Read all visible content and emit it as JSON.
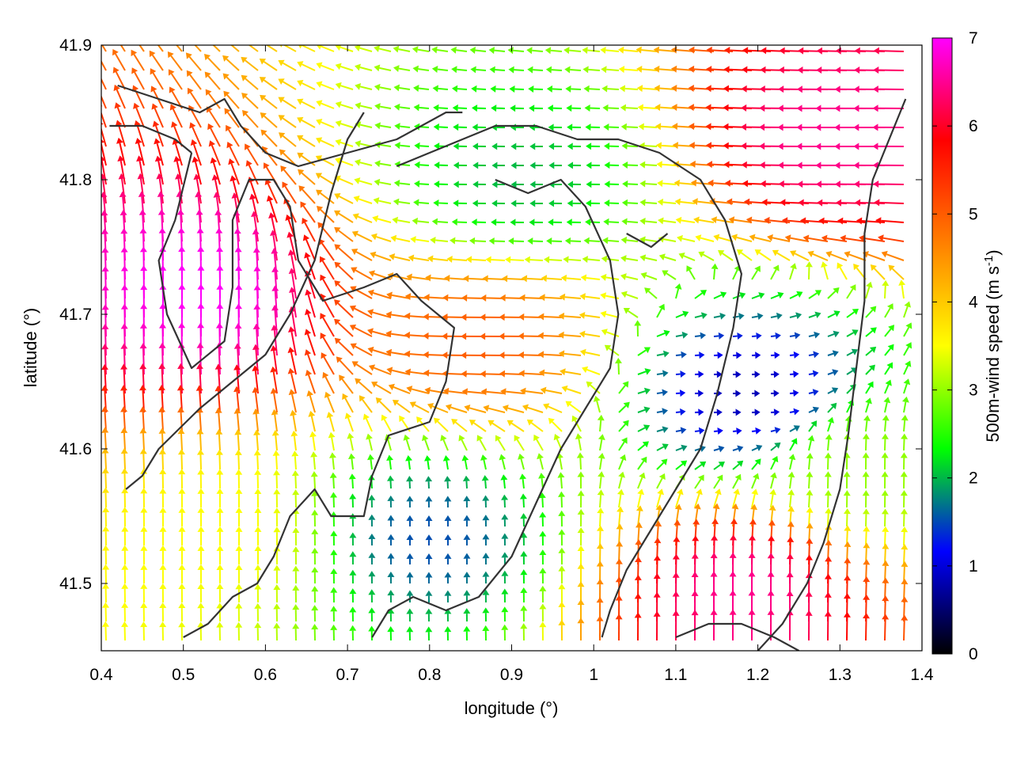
{
  "chart_data": {
    "type": "vector-field",
    "xlabel": "longitude (°)",
    "ylabel": "latitude (°)",
    "xlim": [
      0.4,
      1.4
    ],
    "ylim": [
      41.45,
      41.9
    ],
    "xticks": [
      "0.4",
      "0.5",
      "0.6",
      "0.7",
      "0.8",
      "0.9",
      "1",
      "1.1",
      "1.2",
      "1.3",
      "1.4"
    ],
    "yticks": [
      "41.5",
      "41.6",
      "41.7",
      "41.8",
      "41.9"
    ],
    "colorbar": {
      "label": "500m-wind speed (m s-1)",
      "label_main": "500m-wind speed (m s",
      "label_sup": "-1",
      "label_end": ")",
      "range": [
        0,
        7
      ],
      "ticks": [
        "0",
        "1",
        "2",
        "3",
        "4",
        "5",
        "6",
        "7"
      ],
      "palette": [
        "#000000",
        "#0000ff",
        "#00ff00",
        "#ffff00",
        "#ff8000",
        "#ff0000",
        "#ff00ff"
      ]
    },
    "grid": false,
    "wind_regions": [
      {
        "center": [
          0.52,
          41.7
        ],
        "speed": 7,
        "direction": "north"
      },
      {
        "center": [
          0.88,
          41.68
        ],
        "speed": 5,
        "direction": "west"
      },
      {
        "center": [
          0.92,
          41.8
        ],
        "speed": 2,
        "direction": "west"
      },
      {
        "center": [
          1.18,
          41.64
        ],
        "speed": 0.8,
        "direction": "east"
      },
      {
        "center": [
          1.32,
          41.83
        ],
        "speed": 6.5,
        "direction": "west"
      },
      {
        "center": [
          0.55,
          41.53
        ],
        "speed": 3.5,
        "direction": "north"
      },
      {
        "center": [
          1.18,
          41.48
        ],
        "speed": 6.5,
        "direction": "north"
      },
      {
        "center": [
          0.8,
          41.53
        ],
        "speed": 1.5,
        "direction": "north"
      },
      {
        "center": [
          1.32,
          41.58
        ],
        "speed": 3,
        "direction": "north"
      }
    ],
    "contours": [
      [
        [
          0.42,
          41.87
        ],
        [
          0.47,
          41.86
        ],
        [
          0.52,
          41.85
        ],
        [
          0.55,
          41.86
        ],
        [
          0.57,
          41.84
        ],
        [
          0.6,
          41.82
        ],
        [
          0.64,
          41.81
        ],
        [
          0.7,
          41.82
        ],
        [
          0.76,
          41.83
        ],
        [
          0.82,
          41.85
        ],
        [
          0.84,
          41.85
        ]
      ],
      [
        [
          0.41,
          41.84
        ],
        [
          0.45,
          41.84
        ],
        [
          0.49,
          41.83
        ],
        [
          0.51,
          41.82
        ]
      ],
      [
        [
          0.51,
          41.82
        ],
        [
          0.49,
          41.77
        ],
        [
          0.47,
          41.74
        ],
        [
          0.48,
          41.7
        ],
        [
          0.51,
          41.66
        ],
        [
          0.55,
          41.68
        ],
        [
          0.56,
          41.72
        ],
        [
          0.56,
          41.77
        ],
        [
          0.58,
          41.8
        ],
        [
          0.61,
          41.8
        ],
        [
          0.63,
          41.78
        ],
        [
          0.64,
          41.74
        ],
        [
          0.67,
          41.71
        ],
        [
          0.72,
          41.72
        ],
        [
          0.76,
          41.73
        ],
        [
          0.79,
          41.71
        ],
        [
          0.83,
          41.69
        ],
        [
          0.82,
          41.65
        ],
        [
          0.8,
          41.62
        ],
        [
          0.75,
          41.61
        ],
        [
          0.73,
          41.58
        ],
        [
          0.72,
          41.55
        ],
        [
          0.68,
          41.55
        ],
        [
          0.66,
          41.57
        ],
        [
          0.63,
          41.55
        ],
        [
          0.61,
          41.52
        ],
        [
          0.59,
          41.5
        ],
        [
          0.56,
          41.49
        ],
        [
          0.53,
          41.47
        ],
        [
          0.5,
          41.46
        ]
      ],
      [
        [
          0.43,
          41.57
        ],
        [
          0.45,
          41.58
        ],
        [
          0.47,
          41.6
        ],
        [
          0.52,
          41.63
        ],
        [
          0.56,
          41.65
        ],
        [
          0.6,
          41.67
        ],
        [
          0.63,
          41.7
        ],
        [
          0.66,
          41.74
        ],
        [
          0.68,
          41.79
        ],
        [
          0.7,
          41.83
        ],
        [
          0.72,
          41.85
        ]
      ],
      [
        [
          0.76,
          41.81
        ],
        [
          0.8,
          41.82
        ],
        [
          0.84,
          41.83
        ],
        [
          0.88,
          41.84
        ],
        [
          0.93,
          41.84
        ],
        [
          0.98,
          41.83
        ],
        [
          1.03,
          41.83
        ],
        [
          1.08,
          41.82
        ],
        [
          1.13,
          41.8
        ],
        [
          1.16,
          41.77
        ],
        [
          1.18,
          41.73
        ],
        [
          1.17,
          41.69
        ],
        [
          1.15,
          41.64
        ],
        [
          1.13,
          41.6
        ],
        [
          1.1,
          41.57
        ],
        [
          1.07,
          41.54
        ],
        [
          1.04,
          41.51
        ],
        [
          1.02,
          41.48
        ],
        [
          1.01,
          41.46
        ]
      ],
      [
        [
          0.88,
          41.8
        ],
        [
          0.92,
          41.79
        ],
        [
          0.96,
          41.8
        ],
        [
          0.99,
          41.78
        ],
        [
          1.02,
          41.74
        ],
        [
          1.03,
          41.7
        ],
        [
          1.02,
          41.66
        ],
        [
          0.99,
          41.63
        ],
        [
          0.96,
          41.6
        ],
        [
          0.93,
          41.56
        ],
        [
          0.9,
          41.52
        ],
        [
          0.86,
          41.49
        ],
        [
          0.82,
          41.48
        ],
        [
          0.78,
          41.49
        ],
        [
          0.75,
          41.48
        ],
        [
          0.73,
          41.46
        ]
      ],
      [
        [
          1.2,
          41.45
        ],
        [
          1.23,
          41.47
        ],
        [
          1.26,
          41.5
        ],
        [
          1.28,
          41.53
        ],
        [
          1.3,
          41.57
        ],
        [
          1.31,
          41.61
        ],
        [
          1.32,
          41.66
        ],
        [
          1.33,
          41.71
        ],
        [
          1.33,
          41.76
        ],
        [
          1.34,
          41.8
        ],
        [
          1.36,
          41.83
        ],
        [
          1.38,
          41.86
        ]
      ],
      [
        [
          1.1,
          41.46
        ],
        [
          1.14,
          41.47
        ],
        [
          1.18,
          41.47
        ],
        [
          1.22,
          41.46
        ],
        [
          1.25,
          41.45
        ]
      ],
      [
        [
          1.04,
          41.76
        ],
        [
          1.07,
          41.75
        ],
        [
          1.09,
          41.76
        ]
      ]
    ]
  }
}
